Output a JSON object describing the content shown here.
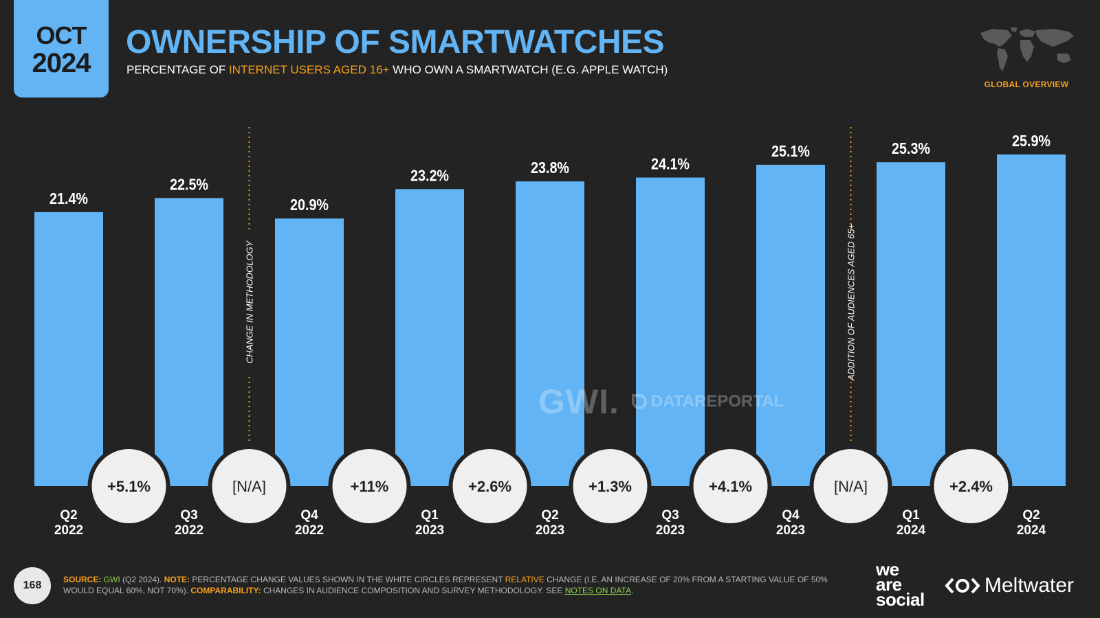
{
  "header": {
    "month": "OCT",
    "year": "2024",
    "title": "OWNERSHIP OF SMARTWATCHES",
    "subtitle_pre": "PERCENTAGE OF ",
    "subtitle_highlight": "INTERNET USERS AGED 16+",
    "subtitle_post": " WHO OWN A SMARTWATCH (E.G. APPLE WATCH)",
    "section": "GLOBAL OVERVIEW"
  },
  "colors": {
    "accent": "#62b4f4",
    "highlight": "#f7a01b",
    "background": "#232323",
    "circle": "#efefef",
    "link": "#8fd14f"
  },
  "chart_data": {
    "type": "bar",
    "categories": [
      "Q2 2022",
      "Q3 2022",
      "Q4 2022",
      "Q1 2023",
      "Q2 2023",
      "Q3 2023",
      "Q4 2023",
      "Q1 2024",
      "Q2 2024"
    ],
    "category_lines": [
      [
        "Q2",
        "2022"
      ],
      [
        "Q3",
        "2022"
      ],
      [
        "Q4",
        "2022"
      ],
      [
        "Q1",
        "2023"
      ],
      [
        "Q2",
        "2023"
      ],
      [
        "Q3",
        "2023"
      ],
      [
        "Q4",
        "2023"
      ],
      [
        "Q1",
        "2024"
      ],
      [
        "Q2",
        "2024"
      ]
    ],
    "values": [
      21.4,
      22.5,
      20.9,
      23.2,
      23.8,
      24.1,
      25.1,
      25.3,
      25.9
    ],
    "value_labels": [
      "21.4%",
      "22.5%",
      "20.9%",
      "23.2%",
      "23.8%",
      "24.1%",
      "25.1%",
      "25.3%",
      "25.9%"
    ],
    "changes": [
      "+5.1%",
      "[N/A]",
      "+11%",
      "+2.6%",
      "+1.3%",
      "+4.1%",
      "[N/A]",
      "+2.4%"
    ],
    "ylim": [
      0,
      25.9
    ],
    "grid": false,
    "legend": "none",
    "annotations": [
      {
        "after_index": 1,
        "text": "CHANGE IN METHODOLOGY"
      },
      {
        "after_index": 6,
        "text": "ADDITION OF AUDIENCES AGED 65+"
      }
    ]
  },
  "watermark": {
    "gwi": "GWI.",
    "datareportal": "DATAREPORTAL"
  },
  "footer": {
    "page_number": "168",
    "source_key": "SOURCE:",
    "source_org": "GWI",
    "source_rest": " (Q2 2024). ",
    "note_key": "NOTE:",
    "note_pre": " PERCENTAGE CHANGE VALUES SHOWN IN THE WHITE CIRCLES REPRESENT ",
    "note_highlight": "RELATIVE",
    "note_post": " CHANGE (I.E. AN INCREASE OF 20% FROM A STARTING VALUE OF 50% WOULD EQUAL 60%, NOT 70%). ",
    "comp_key": "COMPARABILITY:",
    "comp_text": " CHANGES IN AUDIENCE COMPOSITION AND SURVEY METHODOLOGY. SEE ",
    "comp_link": "NOTES ON DATA",
    "comp_end": "."
  },
  "brands": {
    "we": "we",
    "are": "are",
    "social": "social",
    "meltwater": "Meltwater"
  }
}
